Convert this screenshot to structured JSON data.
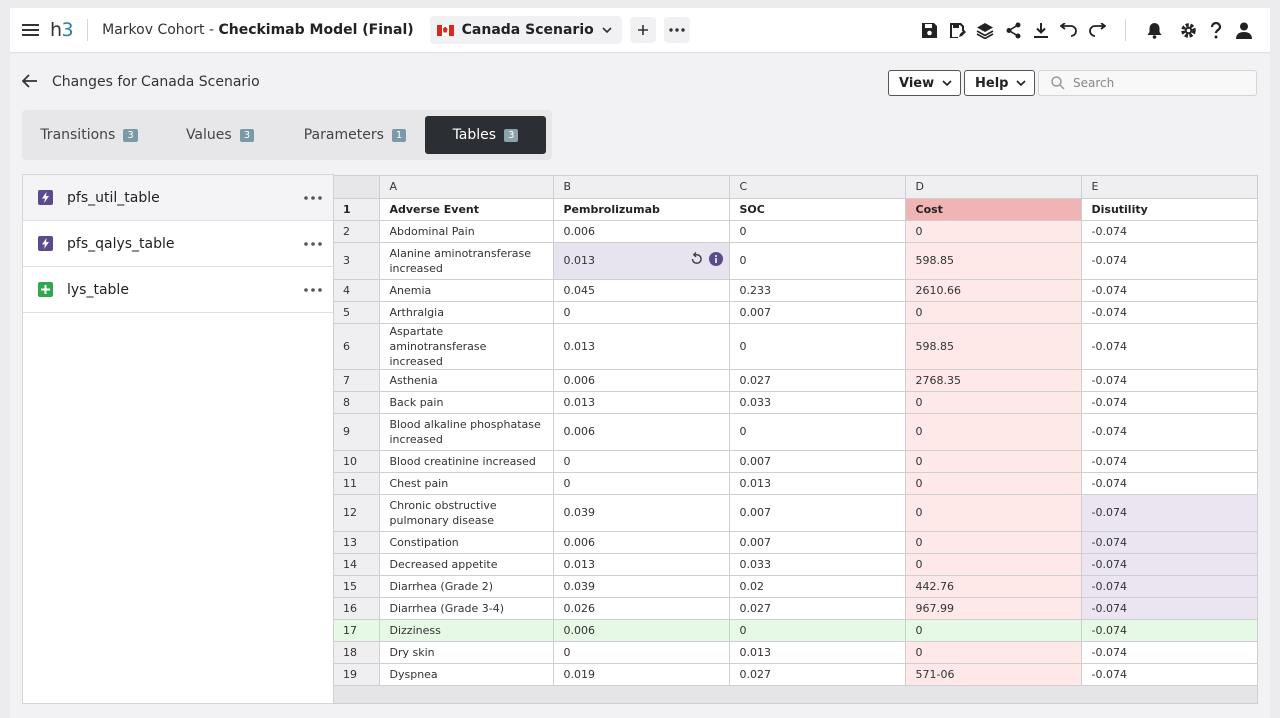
{
  "app": {
    "logo_h": "h",
    "logo_3": "3",
    "model_prefix": "Markov Cohort - ",
    "model_name": "Checkimab Model (Final)",
    "scenario": "Canada Scenario",
    "accent": "#2a7fa3",
    "icons": [
      "menu-icon",
      "plus-icon",
      "more-icon",
      "save-icon",
      "save-as-icon",
      "layers-icon",
      "share-icon",
      "download-icon",
      "undo-icon",
      "redo-icon",
      "bell-icon",
      "gear-icon",
      "help-icon",
      "user-icon"
    ]
  },
  "header": {
    "title": "Changes for Canada Scenario",
    "view_label": "View",
    "help_label": "Help",
    "search_placeholder": "Search"
  },
  "tabs": [
    {
      "label": "Transitions",
      "count": "3"
    },
    {
      "label": "Values",
      "count": "3"
    },
    {
      "label": "Parameters",
      "count": "1"
    },
    {
      "label": "Tables",
      "count": "3"
    }
  ],
  "tables_list": [
    {
      "name": "pfs_util_table",
      "icon": "bolt-table-icon"
    },
    {
      "name": "pfs_qalys_table",
      "icon": "bolt-table-icon"
    },
    {
      "name": "lys_table",
      "icon": "plus-table-icon"
    }
  ],
  "grid": {
    "columns": [
      "A",
      "B",
      "C",
      "D",
      "E"
    ],
    "rows": [
      [
        "1",
        "Adverse Event",
        "Pembrolizumab",
        "SOC",
        "Cost",
        "Disutility"
      ],
      [
        "2",
        "Abdominal Pain",
        "0.006",
        "0",
        "0",
        "-0.074"
      ],
      [
        "3",
        "Alanine aminotransferase increased",
        "0.013",
        "0",
        "598.85",
        "-0.074"
      ],
      [
        "4",
        "Anemia",
        "0.045",
        "0.233",
        "2610.66",
        "-0.074"
      ],
      [
        "5",
        "Arthralgia",
        "0",
        "0.007",
        "0",
        "-0.074"
      ],
      [
        "6",
        "Aspartate aminotransferase increased",
        "0.013",
        "0",
        "598.85",
        "-0.074"
      ],
      [
        "7",
        "Asthenia",
        "0.006",
        "0.027",
        "2768.35",
        "-0.074"
      ],
      [
        "8",
        "Back pain",
        "0.013",
        "0.033",
        "0",
        "-0.074"
      ],
      [
        "9",
        "Blood alkaline phosphatase increased",
        "0.006",
        "0",
        "0",
        "-0.074"
      ],
      [
        "10",
        "Blood creatinine increased",
        "0",
        "0.007",
        "0",
        "-0.074"
      ],
      [
        "11",
        "Chest pain",
        "0",
        "0.013",
        "0",
        "-0.074"
      ],
      [
        "12",
        "Chronic obstructive pulmonary disease",
        "0.039",
        "0.007",
        "0",
        "-0.074"
      ],
      [
        "13",
        "Constipation",
        "0.006",
        "0.007",
        "0",
        "-0.074"
      ],
      [
        "14",
        "Decreased appetite",
        "0.013",
        "0.033",
        "0",
        "-0.074"
      ],
      [
        "15",
        "Diarrhea (Grade 2)",
        "0.039",
        "0.02",
        "442.76",
        "-0.074"
      ],
      [
        "16",
        "Diarrhea (Grade 3-4)",
        "0.026",
        "0.027",
        "967.99",
        "-0.074"
      ],
      [
        "17",
        "Dizziness",
        "0.006",
        "0",
        "0",
        "-0.074"
      ],
      [
        "18",
        "Dry skin",
        "0",
        "0.013",
        "0",
        "-0.074"
      ],
      [
        "19",
        "Dyspnea",
        "0.019",
        "0.027",
        "571-06",
        "-0.074"
      ]
    ]
  }
}
